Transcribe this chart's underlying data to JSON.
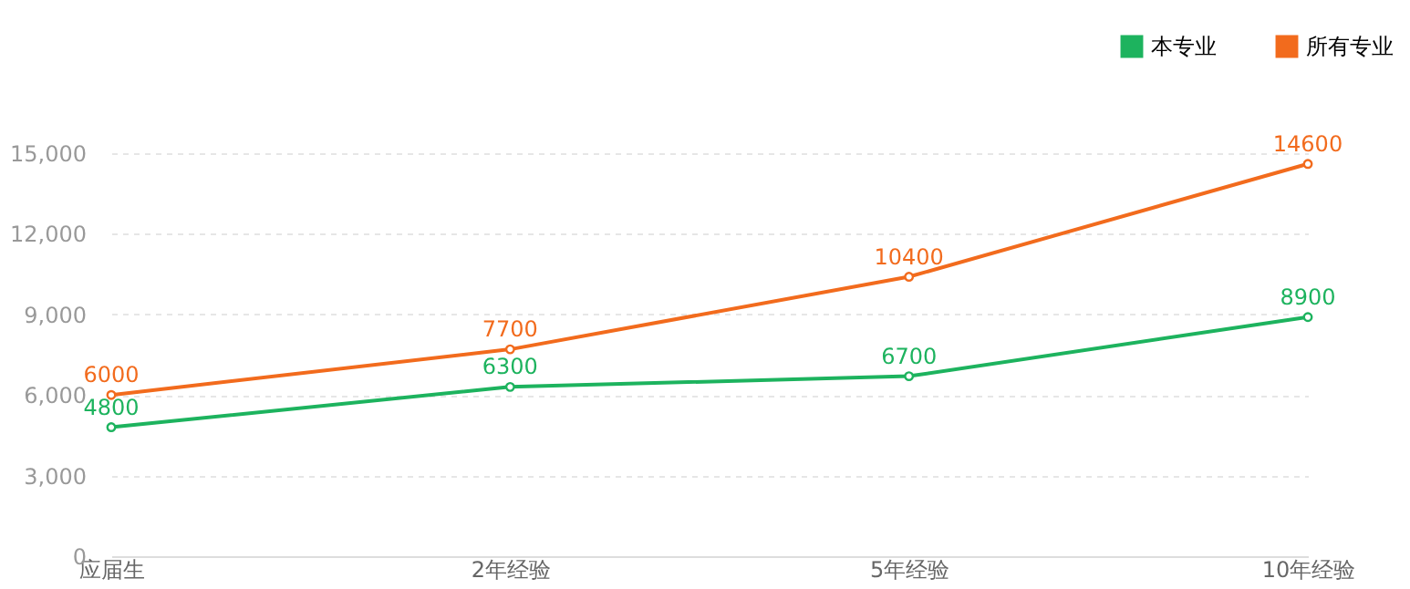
{
  "chart_data": {
    "type": "line",
    "categories": [
      "应届生",
      "2年经验",
      "5年经验",
      "10年经验"
    ],
    "series": [
      {
        "name": "本专业",
        "color": "#1db35e",
        "values": [
          4800,
          6300,
          6700,
          8900
        ]
      },
      {
        "name": "所有专业",
        "color": "#f26b1d",
        "values": [
          6000,
          7700,
          10400,
          14600
        ]
      }
    ],
    "ylim": [
      0,
      15000
    ],
    "yticks": [
      0,
      {
        "value": 3000,
        "label": "3,000"
      },
      {
        "value": 6000,
        "label": "6,000"
      },
      {
        "value": 9000,
        "label": "9,000"
      },
      {
        "value": 12000,
        "label": "12,000"
      },
      {
        "value": 15000,
        "label": "15,000"
      }
    ],
    "grid": "y",
    "legend": "top right",
    "marker": "circle",
    "line_style": "solid",
    "data_labels": true
  }
}
